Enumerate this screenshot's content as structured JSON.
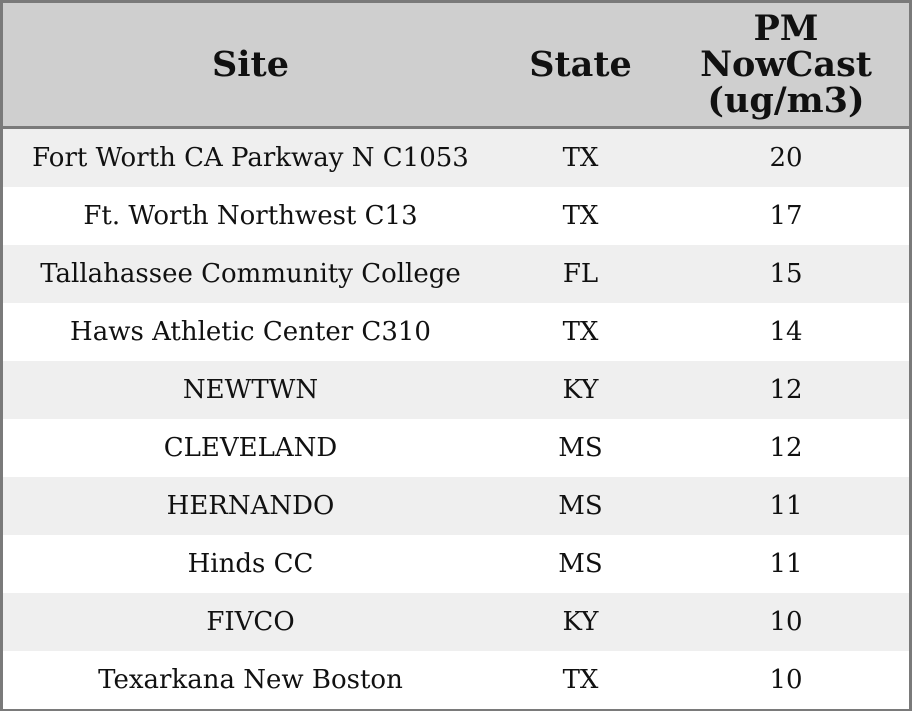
{
  "table": {
    "headers": [
      "Site",
      "State",
      "PM\nNowCast\n(ug/m3)"
    ]
  },
  "chart_data": {
    "type": "table",
    "columns": [
      "Site",
      "State",
      "PM NowCast (ug/m3)"
    ],
    "rows": [
      {
        "site": "Fort Worth CA Parkway N C1053",
        "state": "TX",
        "pm_nowcast": 20
      },
      {
        "site": "Ft. Worth Northwest C13",
        "state": "TX",
        "pm_nowcast": 17
      },
      {
        "site": "Tallahassee Community College",
        "state": "FL",
        "pm_nowcast": 15
      },
      {
        "site": "Haws Athletic Center C310",
        "state": "TX",
        "pm_nowcast": 14
      },
      {
        "site": "NEWTWN",
        "state": "KY",
        "pm_nowcast": 12
      },
      {
        "site": "CLEVELAND",
        "state": "MS",
        "pm_nowcast": 12
      },
      {
        "site": "HERNANDO",
        "state": "MS",
        "pm_nowcast": 11
      },
      {
        "site": "Hinds CC",
        "state": "MS",
        "pm_nowcast": 11
      },
      {
        "site": "FIVCO",
        "state": "KY",
        "pm_nowcast": 10
      },
      {
        "site": "Texarkana New Boston",
        "state": "TX",
        "pm_nowcast": 10
      }
    ]
  }
}
